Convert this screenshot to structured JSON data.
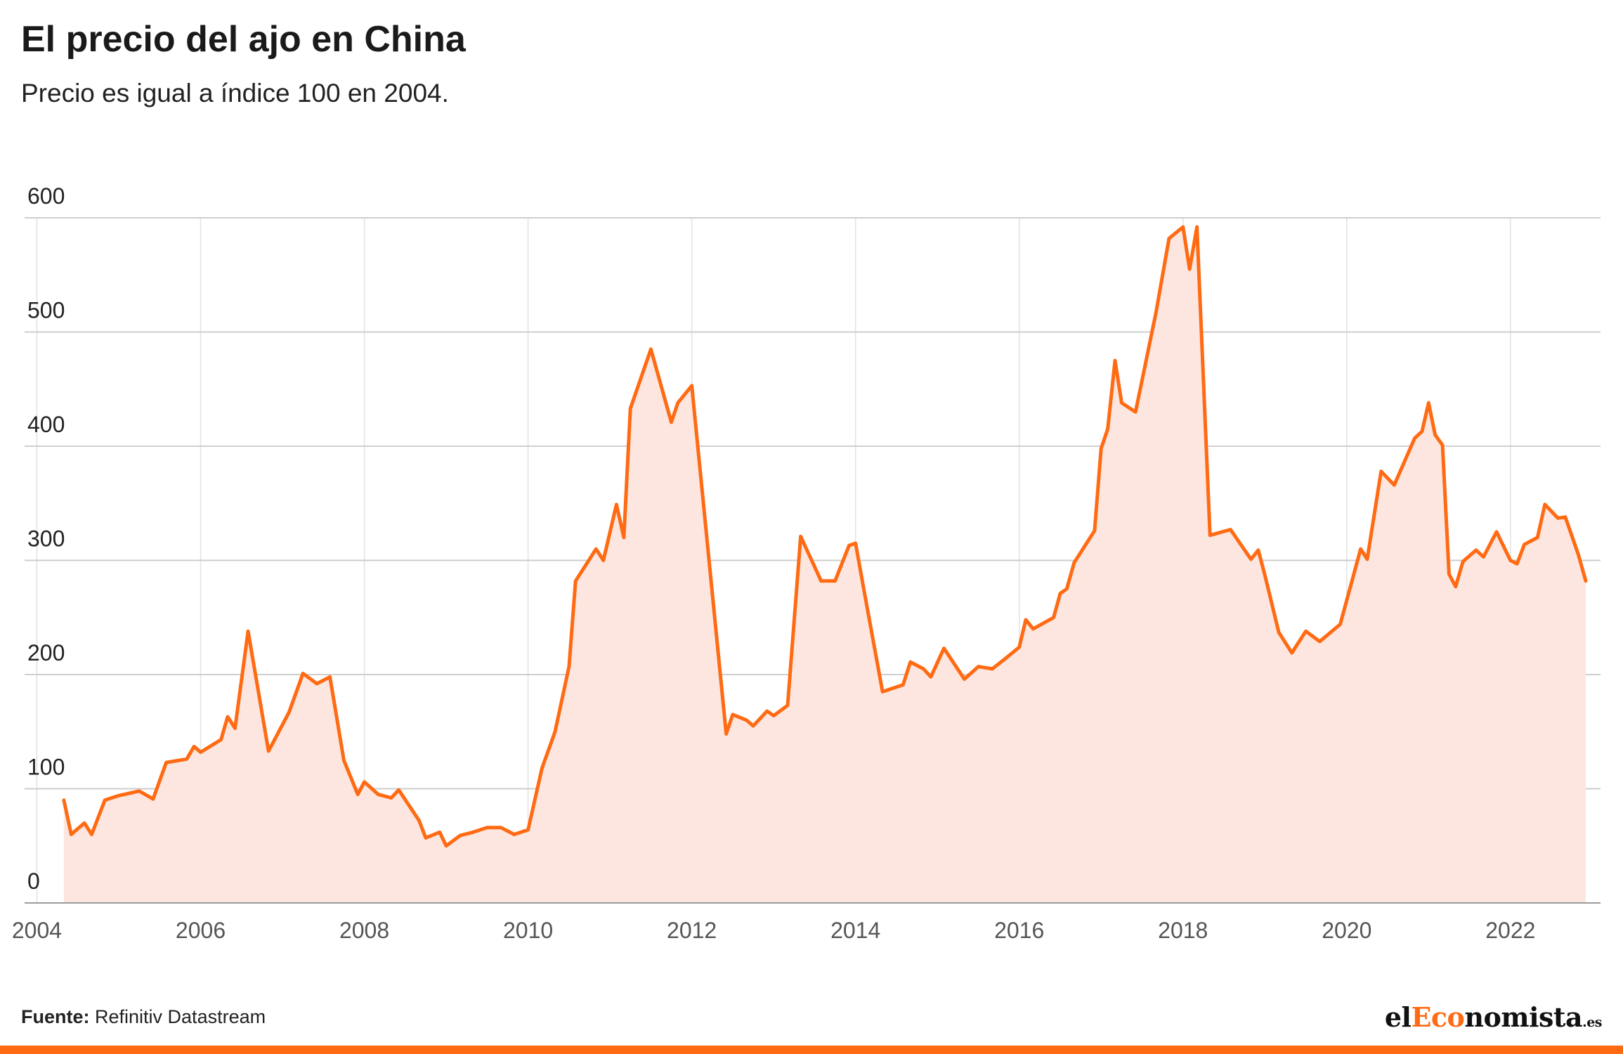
{
  "title": "El precio del ajo en China",
  "subtitle": "Precio es igual a índice 100 en 2004.",
  "source": {
    "label": "Fuente:",
    "text": "Refinitiv Datastream"
  },
  "logo": {
    "part1": "el",
    "part2": "Eco",
    "part3": "nomista",
    "part4": ".es"
  },
  "colors": {
    "line": "#ff6a13",
    "area": "#fde6df",
    "grid": "#c8c8c8",
    "bar": "#ff6a13"
  },
  "chart_data": {
    "type": "area",
    "title": "El precio del ajo en China",
    "subtitle": "Precio es igual a índice 100 en 2004.",
    "xlabel": "",
    "ylabel": "",
    "xlim": [
      2003.85,
      2023.1
    ],
    "ylim": [
      0,
      600
    ],
    "yticks": [
      0,
      100,
      200,
      300,
      400,
      500,
      600
    ],
    "xticks": [
      2004,
      2006,
      2008,
      2010,
      2012,
      2014,
      2016,
      2018,
      2020,
      2022
    ],
    "grid": {
      "horizontal": true,
      "vertical": true
    },
    "legend": "none",
    "series": [
      {
        "points": [
          [
            2004.33,
            90
          ],
          [
            2004.42,
            60
          ],
          [
            2004.58,
            70
          ],
          [
            2004.67,
            60
          ],
          [
            2004.83,
            90
          ],
          [
            2005.0,
            94
          ],
          [
            2005.25,
            98
          ],
          [
            2005.42,
            91
          ],
          [
            2005.58,
            123
          ],
          [
            2005.83,
            126
          ],
          [
            2005.92,
            137
          ],
          [
            2006.0,
            132
          ],
          [
            2006.25,
            143
          ],
          [
            2006.33,
            163
          ],
          [
            2006.42,
            153
          ],
          [
            2006.58,
            238
          ],
          [
            2006.83,
            133
          ],
          [
            2007.08,
            167
          ],
          [
            2007.25,
            201
          ],
          [
            2007.42,
            192
          ],
          [
            2007.58,
            198
          ],
          [
            2007.75,
            125
          ],
          [
            2007.92,
            95
          ],
          [
            2008.0,
            106
          ],
          [
            2008.17,
            95
          ],
          [
            2008.33,
            92
          ],
          [
            2008.42,
            99
          ],
          [
            2008.67,
            72
          ],
          [
            2008.75,
            57
          ],
          [
            2008.92,
            62
          ],
          [
            2009.0,
            50
          ],
          [
            2009.17,
            59
          ],
          [
            2009.33,
            62
          ],
          [
            2009.5,
            66
          ],
          [
            2009.67,
            66
          ],
          [
            2009.83,
            60
          ],
          [
            2010.0,
            64
          ],
          [
            2010.17,
            118
          ],
          [
            2010.33,
            150
          ],
          [
            2010.5,
            207
          ],
          [
            2010.58,
            282
          ],
          [
            2010.83,
            310
          ],
          [
            2010.92,
            300
          ],
          [
            2011.08,
            349
          ],
          [
            2011.17,
            320
          ],
          [
            2011.25,
            433
          ],
          [
            2011.5,
            485
          ],
          [
            2011.75,
            421
          ],
          [
            2011.83,
            438
          ],
          [
            2012.0,
            453
          ],
          [
            2012.42,
            148
          ],
          [
            2012.5,
            165
          ],
          [
            2012.67,
            160
          ],
          [
            2012.75,
            155
          ],
          [
            2012.92,
            168
          ],
          [
            2013.0,
            164
          ],
          [
            2013.17,
            173
          ],
          [
            2013.33,
            321
          ],
          [
            2013.58,
            282
          ],
          [
            2013.75,
            282
          ],
          [
            2013.92,
            313
          ],
          [
            2014.0,
            315
          ],
          [
            2014.08,
            283
          ],
          [
            2014.33,
            185
          ],
          [
            2014.58,
            191
          ],
          [
            2014.67,
            211
          ],
          [
            2014.83,
            205
          ],
          [
            2014.92,
            198
          ],
          [
            2015.08,
            223
          ],
          [
            2015.33,
            196
          ],
          [
            2015.5,
            207
          ],
          [
            2015.67,
            205
          ],
          [
            2015.83,
            214
          ],
          [
            2016.0,
            224
          ],
          [
            2016.08,
            248
          ],
          [
            2016.17,
            240
          ],
          [
            2016.42,
            250
          ],
          [
            2016.5,
            271
          ],
          [
            2016.58,
            275
          ],
          [
            2016.67,
            298
          ],
          [
            2016.92,
            326
          ],
          [
            2017.0,
            398
          ],
          [
            2017.08,
            415
          ],
          [
            2017.17,
            475
          ],
          [
            2017.25,
            438
          ],
          [
            2017.42,
            430
          ],
          [
            2017.67,
            517
          ],
          [
            2017.83,
            582
          ],
          [
            2018.0,
            592
          ],
          [
            2018.08,
            555
          ],
          [
            2018.17,
            592
          ],
          [
            2018.33,
            322
          ],
          [
            2018.58,
            327
          ],
          [
            2018.83,
            301
          ],
          [
            2018.92,
            309
          ],
          [
            2019.0,
            287
          ],
          [
            2019.17,
            237
          ],
          [
            2019.33,
            219
          ],
          [
            2019.5,
            238
          ],
          [
            2019.67,
            229
          ],
          [
            2019.92,
            244
          ],
          [
            2020.17,
            310
          ],
          [
            2020.25,
            301
          ],
          [
            2020.42,
            378
          ],
          [
            2020.58,
            366
          ],
          [
            2020.83,
            407
          ],
          [
            2020.92,
            413
          ],
          [
            2021.0,
            438
          ],
          [
            2021.08,
            410
          ],
          [
            2021.17,
            401
          ],
          [
            2021.25,
            288
          ],
          [
            2021.33,
            277
          ],
          [
            2021.42,
            299
          ],
          [
            2021.58,
            309
          ],
          [
            2021.67,
            303
          ],
          [
            2021.83,
            325
          ],
          [
            2022.0,
            300
          ],
          [
            2022.08,
            297
          ],
          [
            2022.17,
            314
          ],
          [
            2022.33,
            320
          ],
          [
            2022.42,
            349
          ],
          [
            2022.58,
            337
          ],
          [
            2022.67,
            338
          ],
          [
            2022.83,
            305
          ],
          [
            2022.92,
            282
          ]
        ]
      }
    ]
  }
}
